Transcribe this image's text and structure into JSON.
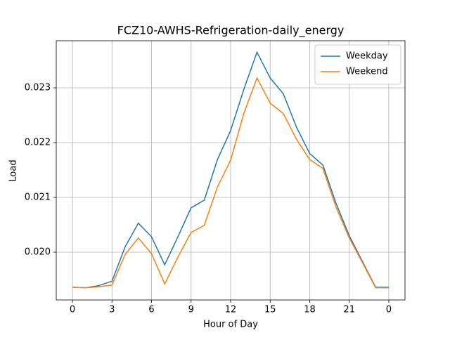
{
  "chart_data": {
    "type": "line",
    "title": "FCZ10-AWHS-Refrigeration-daily_energy",
    "x_label": "Hour of Day",
    "y_label": "Load",
    "x": [
      0,
      1,
      2,
      3,
      4,
      5,
      6,
      7,
      8,
      9,
      10,
      11,
      12,
      13,
      14,
      15,
      16,
      17,
      18,
      19,
      20,
      21,
      22,
      23,
      24
    ],
    "series": [
      {
        "name": "Weekday",
        "color": "#1f77b4",
        "values": [
          0.01936,
          0.01935,
          0.01939,
          0.01947,
          0.0201,
          0.02053,
          0.02028,
          0.01977,
          0.02028,
          0.02081,
          0.02095,
          0.02169,
          0.02222,
          0.02297,
          0.02365,
          0.02318,
          0.02289,
          0.02228,
          0.0218,
          0.02159,
          0.02089,
          0.0203,
          0.01983,
          0.01936,
          0.01936
        ]
      },
      {
        "name": "Weekend",
        "color": "#ff7f0e",
        "values": [
          0.01936,
          0.01935,
          0.01937,
          0.0194,
          0.01996,
          0.02026,
          0.01997,
          0.01942,
          0.01991,
          0.02036,
          0.02049,
          0.02119,
          0.02168,
          0.02253,
          0.02318,
          0.02272,
          0.02253,
          0.02206,
          0.02169,
          0.02153,
          0.02082,
          0.02026,
          0.01981,
          0.01935,
          0.01935
        ]
      }
    ],
    "xlim": [
      -1.23,
      25.23
    ],
    "xticks": [
      0,
      3,
      6,
      9,
      12,
      15,
      18,
      21,
      {
        "value": 24,
        "label": "0"
      }
    ],
    "ylim": [
      0.019128,
      0.023859
    ],
    "yticks": [
      {
        "value": 0.02,
        "label": "0.020"
      },
      0.021,
      0.022,
      0.023
    ],
    "grid": true,
    "legend": "upper right"
  }
}
